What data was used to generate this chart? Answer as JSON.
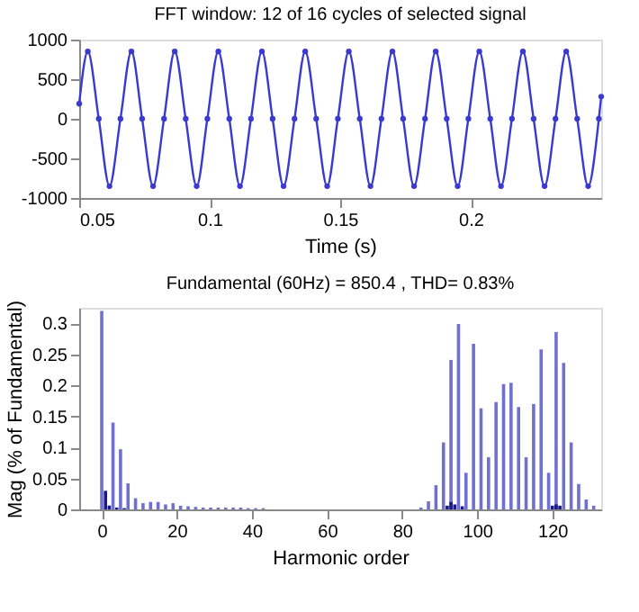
{
  "chart_data": [
    {
      "type": "line",
      "title": "FFT window: 12 of 16 cycles of selected signal",
      "xlabel": "Time (s)",
      "xlim": [
        0.05,
        0.25
      ],
      "xticks": [
        0.05,
        0.1,
        0.15,
        0.2
      ],
      "ylim": [
        -1000,
        1000
      ],
      "yticks": [
        -1000,
        -500,
        0,
        500,
        1000
      ],
      "grid": false,
      "marker": "circle",
      "line_style": "solid",
      "series": [
        {
          "color": "#3a3ad0",
          "x": [
            0.05,
            0.0533,
            0.0575,
            0.0616,
            0.0658,
            0.07,
            0.0741,
            0.0783,
            0.0825,
            0.0866,
            0.0908,
            0.095,
            0.0991,
            0.1033,
            0.1075,
            0.1116,
            0.1158,
            0.12,
            0.1241,
            0.1283,
            0.1325,
            0.1366,
            0.1408,
            0.145,
            0.1491,
            0.1533,
            0.1575,
            0.1616,
            0.1658,
            0.17,
            0.1741,
            0.1783,
            0.1825,
            0.1866,
            0.1908,
            0.195,
            0.1991,
            0.2033,
            0.2075,
            0.2116,
            0.2158,
            0.22,
            0.2241,
            0.2283,
            0.2325,
            0.2366,
            0.2408,
            0.245,
            0.2491,
            0.25
          ],
          "values": [
            190,
            850,
            0,
            -850,
            0,
            850,
            0,
            -850,
            0,
            850,
            0,
            -850,
            0,
            850,
            0,
            -850,
            0,
            850,
            0,
            -850,
            0,
            850,
            0,
            -850,
            0,
            850,
            0,
            -850,
            0,
            850,
            0,
            -850,
            0,
            850,
            0,
            -850,
            0,
            850,
            0,
            -850,
            0,
            850,
            0,
            -850,
            0,
            850,
            0,
            -850,
            0,
            280
          ]
        }
      ]
    },
    {
      "type": "bar",
      "title": "Fundamental (60Hz) = 850.4 , THD= 0.83%",
      "xlabel": "Harmonic order",
      "ylabel": "Mag (% of Fundamental)",
      "xlim": [
        -6,
        133
      ],
      "xticks": [
        0,
        20,
        40,
        60,
        80,
        100,
        120
      ],
      "ylim": [
        0,
        0.325
      ],
      "yticks": [
        0,
        0.05,
        0.1,
        0.15,
        0.2,
        0.25,
        0.3
      ],
      "grid": false,
      "series": [
        {
          "color": "#7070d0",
          "x": [
            0,
            3,
            5,
            7,
            9,
            11,
            13,
            15,
            17,
            19,
            21,
            23,
            25,
            27,
            29,
            31,
            33,
            35,
            37,
            39,
            41,
            43,
            85,
            87,
            89,
            91,
            93,
            95,
            97,
            99,
            101,
            103,
            105,
            107,
            109,
            111,
            113,
            115,
            117,
            119,
            121,
            123,
            125,
            127,
            129,
            131
          ],
          "values": [
            0.32,
            0.14,
            0.097,
            0.042,
            0.018,
            0.01,
            0.012,
            0.012,
            0.008,
            0.01,
            0.006,
            0.005,
            0.004,
            0.003,
            0.003,
            0.003,
            0.003,
            0.003,
            0.003,
            0.002,
            0.002,
            0.002,
            0.003,
            0.013,
            0.039,
            0.108,
            0.241,
            0.299,
            0.059,
            0.267,
            0.163,
            0.084,
            0.173,
            0.202,
            0.204,
            0.165,
            0.084,
            0.17,
            0.258,
            0.059,
            0.286,
            0.236,
            0.108,
            0.041,
            0.016,
            0.006
          ]
        },
        {
          "color": "#1a1a80",
          "x": [
            1,
            2,
            4,
            6,
            92,
            93,
            94,
            96,
            120,
            121,
            122
          ],
          "values": [
            0.03,
            0.006,
            0.003,
            0.002,
            0.006,
            0.012,
            0.008,
            0.005,
            0.006,
            0.008,
            0.006
          ]
        }
      ]
    }
  ]
}
